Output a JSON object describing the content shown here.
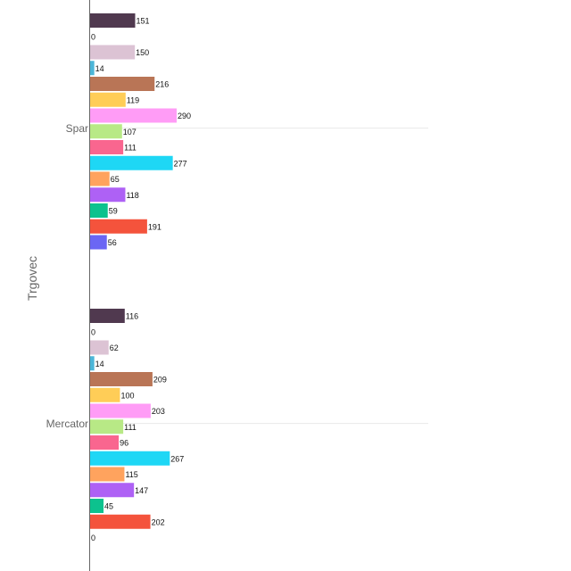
{
  "chart_data": {
    "type": "bar",
    "orientation": "horizontal",
    "title": "",
    "xlabel": "",
    "ylabel": "Trgovec",
    "categories": [
      "Spar",
      "Mercator"
    ],
    "xlim": [
      0,
      700
    ],
    "grid": true,
    "legend": "none",
    "series": [
      {
        "color": "#50394f",
        "values": [
          151,
          116
        ]
      },
      {
        "color": "#4b4b4b",
        "values": [
          0,
          0
        ]
      },
      {
        "color": "#dcc3d4",
        "values": [
          150,
          62
        ]
      },
      {
        "color": "#4cb6d8",
        "values": [
          14,
          14
        ]
      },
      {
        "color": "#b97556",
        "values": [
          216,
          209
        ]
      },
      {
        "color": "#ffcd57",
        "values": [
          119,
          100
        ]
      },
      {
        "color": "#ff9cf6",
        "values": [
          290,
          203
        ]
      },
      {
        "color": "#b8e986",
        "values": [
          107,
          111
        ]
      },
      {
        "color": "#f9668f",
        "values": [
          111,
          96
        ]
      },
      {
        "color": "#1ed7f5",
        "values": [
          277,
          267
        ]
      },
      {
        "color": "#ffa35e",
        "values": [
          65,
          115
        ]
      },
      {
        "color": "#ae61f5",
        "values": [
          118,
          147
        ]
      },
      {
        "color": "#0cc28e",
        "values": [
          59,
          45
        ]
      },
      {
        "color": "#f4533c",
        "values": [
          191,
          202
        ]
      },
      {
        "color": "#6b66f4",
        "values": [
          56,
          0
        ]
      }
    ]
  }
}
